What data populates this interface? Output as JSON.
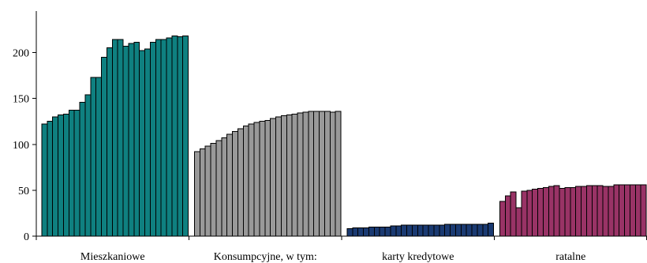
{
  "chart_data": {
    "type": "bar",
    "title": "",
    "xlabel": "",
    "ylabel": "",
    "ylim": [
      0,
      240
    ],
    "yticks": [
      0,
      50,
      100,
      150,
      200
    ],
    "grid": false,
    "legend": "none",
    "groups": [
      {
        "name": "Mieszkaniowe",
        "color": "#0f8080",
        "values": [
          122,
          125,
          130,
          132,
          133,
          137,
          137,
          146,
          154,
          173,
          173,
          195,
          205,
          214,
          214,
          207,
          210,
          211,
          202,
          204,
          211,
          214,
          214,
          216,
          218,
          217,
          218
        ]
      },
      {
        "name": "Konsumpcyjne, w tym:",
        "color": "#999999",
        "values": [
          92,
          95,
          98,
          101,
          104,
          107,
          111,
          114,
          117,
          120,
          122,
          124,
          125,
          126,
          128,
          130,
          131,
          132,
          133,
          134,
          135,
          136,
          136,
          136,
          136,
          135,
          136
        ]
      },
      {
        "name": "karty kredytowe",
        "color": "#1a3a72",
        "values": [
          8,
          9,
          9,
          9,
          10,
          10,
          10,
          10,
          11,
          11,
          12,
          12,
          12,
          12,
          12,
          12,
          12,
          12,
          13,
          13,
          13,
          13,
          13,
          13,
          13,
          13,
          14
        ]
      },
      {
        "name": "ratalne",
        "color": "#993366",
        "values": [
          38,
          44,
          48,
          31,
          49,
          50,
          51,
          52,
          53,
          54,
          55,
          52,
          53,
          53,
          54,
          54,
          55,
          55,
          55,
          54,
          54,
          56,
          56,
          56,
          56,
          56,
          56
        ]
      }
    ]
  }
}
